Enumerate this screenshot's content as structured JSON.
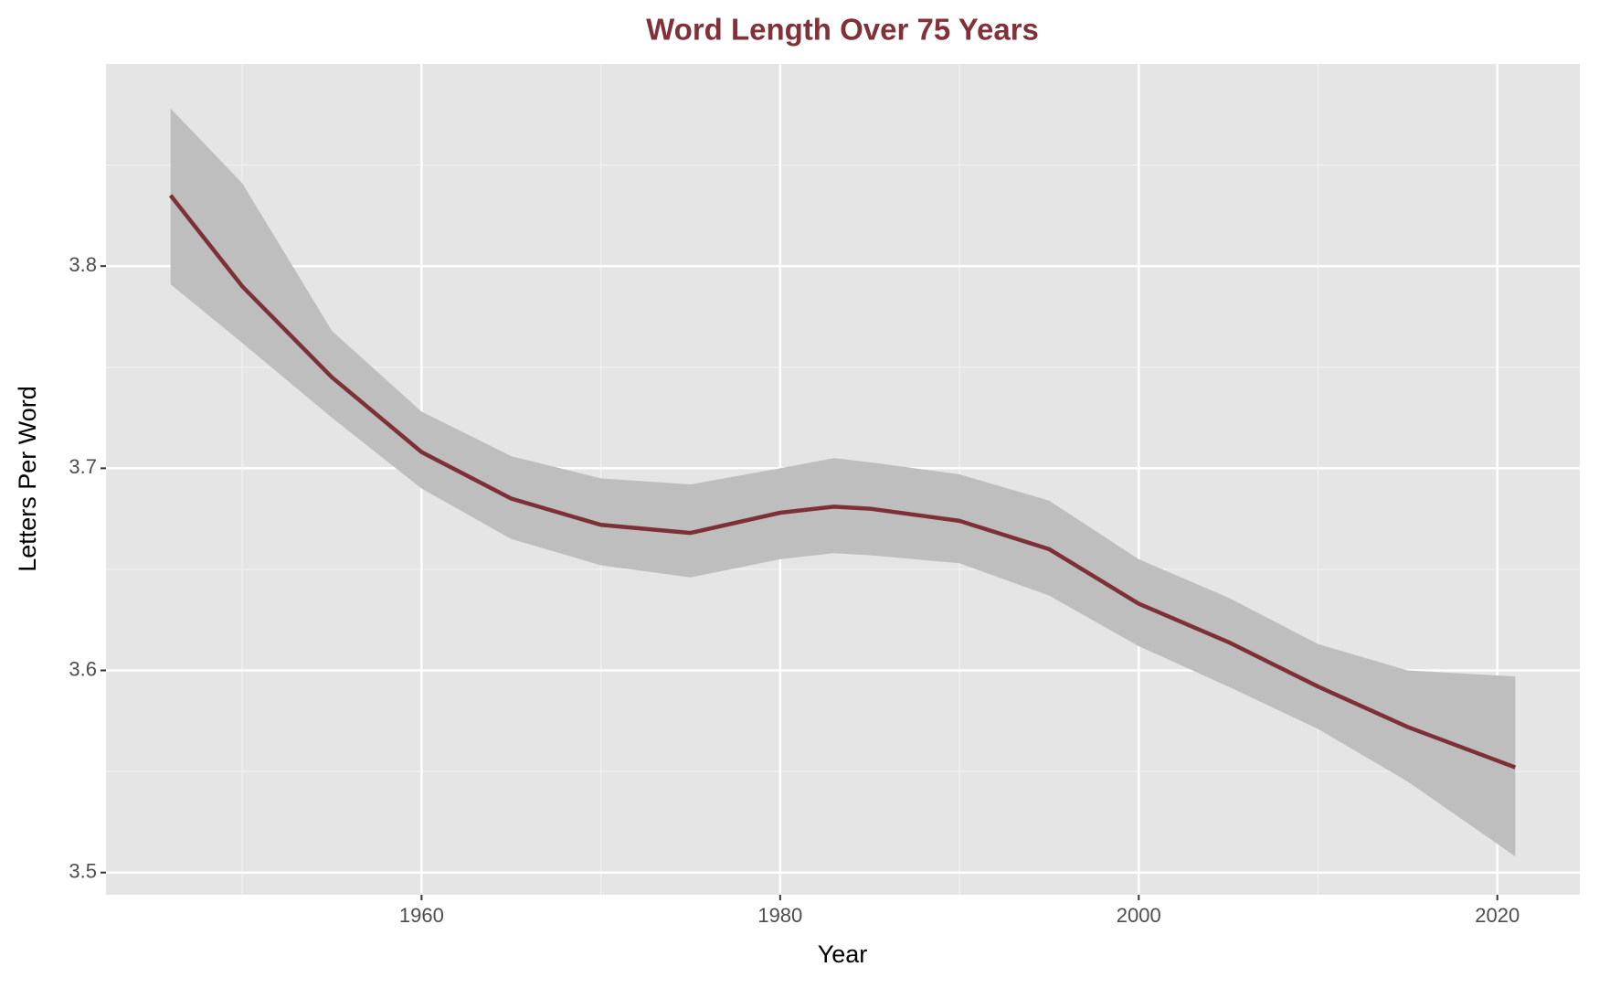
{
  "chart_data": {
    "type": "line",
    "title": "Word Length Over 75 Years",
    "x_label": "Year",
    "y_label": "Letters Per Word",
    "x": [
      1946,
      1950,
      1955,
      1960,
      1965,
      1970,
      1975,
      1980,
      1983,
      1985,
      1990,
      1995,
      2000,
      2005,
      2010,
      2015,
      2021
    ],
    "values": [
      3.835,
      3.79,
      3.745,
      3.708,
      3.685,
      3.672,
      3.668,
      3.678,
      3.681,
      3.68,
      3.674,
      3.66,
      3.633,
      3.614,
      3.592,
      3.572,
      3.552
    ],
    "ci_lower": [
      3.791,
      3.762,
      3.725,
      3.69,
      3.665,
      3.652,
      3.646,
      3.655,
      3.658,
      3.657,
      3.653,
      3.637,
      3.612,
      3.592,
      3.571,
      3.545,
      3.508
    ],
    "ci_upper": [
      3.878,
      3.841,
      3.768,
      3.728,
      3.706,
      3.695,
      3.692,
      3.7,
      3.705,
      3.703,
      3.697,
      3.684,
      3.655,
      3.636,
      3.613,
      3.6,
      3.597
    ],
    "color": "#7d3036",
    "ribbon_color": "#bebebe",
    "title_color": "#813139",
    "xlim": [
      1942.4,
      2024.6
    ],
    "ylim": [
      3.489,
      3.9
    ],
    "xticks": [
      1960,
      1980,
      2000,
      2020
    ],
    "yticks": [
      3.5,
      3.6,
      3.7,
      3.8
    ],
    "grid": true
  }
}
